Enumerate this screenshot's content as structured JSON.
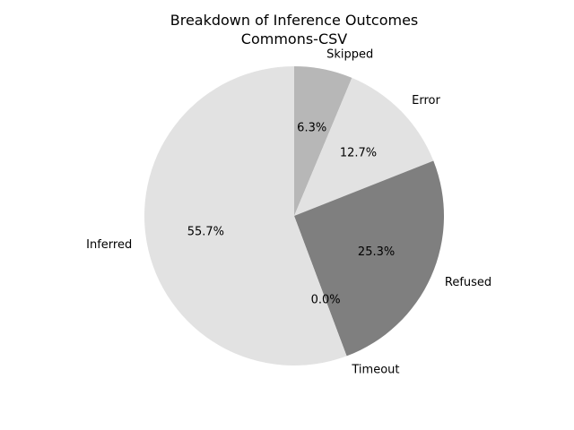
{
  "chart_data": {
    "type": "pie",
    "title": "Breakdown of Inference Outcomes",
    "subtitle": "Commons-CSV",
    "start_angle_deg": 90,
    "direction": "clockwise",
    "slices": [
      {
        "label": "Skipped",
        "value": 6.3,
        "pct_label": "6.3%",
        "color": "#b7b7b7"
      },
      {
        "label": "Error",
        "value": 12.7,
        "pct_label": "12.7%",
        "color": "#e2e2e2"
      },
      {
        "label": "Refused",
        "value": 25.3,
        "pct_label": "25.3%",
        "color": "#7f7f7f"
      },
      {
        "label": "Timeout",
        "value": 0.0,
        "pct_label": "0.0%",
        "color": "#ffffff"
      },
      {
        "label": "Inferred",
        "value": 55.7,
        "pct_label": "55.7%",
        "color": "#e2e2e2"
      }
    ]
  }
}
